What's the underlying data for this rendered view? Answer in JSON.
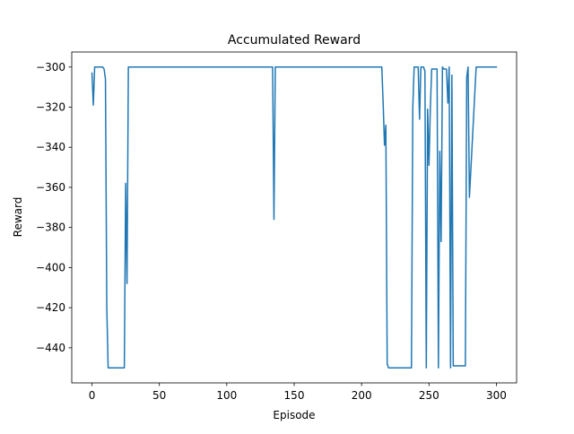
{
  "chart_data": {
    "type": "line",
    "title": "Accumulated Reward",
    "xlabel": "Episode",
    "ylabel": "Reward",
    "xlim": [
      -15,
      315
    ],
    "ylim": [
      -457.5,
      -292.5
    ],
    "xticks": [
      0,
      50,
      100,
      150,
      200,
      250,
      300
    ],
    "xtick_labels": [
      "0",
      "50",
      "100",
      "150",
      "200",
      "250",
      "300"
    ],
    "yticks": [
      -440,
      -420,
      -400,
      -380,
      -360,
      -340,
      -320,
      -300
    ],
    "ytick_labels": [
      "−440",
      "−420",
      "−400",
      "−380",
      "−360",
      "−340",
      "−320",
      "−300"
    ],
    "grid": false,
    "line_color": "#1f77b4",
    "series": [
      {
        "x": [
          0,
          1,
          2,
          3,
          4,
          5,
          6,
          7,
          8,
          9,
          10,
          11,
          12,
          13,
          14,
          15,
          20,
          24,
          25,
          26,
          27,
          28,
          30,
          40,
          60,
          80,
          100,
          120,
          133,
          134,
          135,
          136,
          140,
          160,
          180,
          200,
          214,
          215,
          216,
          217,
          218,
          219,
          220,
          225,
          230,
          237,
          238,
          239,
          240,
          241,
          242,
          243,
          244,
          245,
          246,
          247,
          248,
          249,
          250,
          251,
          252,
          253,
          254,
          255,
          256,
          257,
          258,
          259,
          260,
          261,
          262,
          263,
          264,
          265,
          266,
          267,
          268,
          270,
          275,
          276,
          277,
          278,
          279,
          280,
          285,
          290,
          295,
          297,
          298,
          300
        ],
        "y": [
          -303,
          -319,
          -300,
          -300,
          -300,
          -300,
          -300,
          -300,
          -300,
          -301,
          -306,
          -420,
          -450,
          -450,
          -450,
          -450,
          -450,
          -450,
          -358,
          -408,
          -300,
          -300,
          -300,
          -300,
          -300,
          -300,
          -300,
          -300,
          -300,
          -300,
          -376,
          -300,
          -300,
          -300,
          -300,
          -300,
          -300,
          -300,
          -318,
          -339,
          -329,
          -448,
          -450,
          -450,
          -450,
          -450,
          -320,
          -300,
          -300,
          -300,
          -300,
          -326,
          -300,
          -300,
          -300,
          -302,
          -450,
          -321,
          -349,
          -321,
          -301,
          -301,
          -301,
          -301,
          -301,
          -450,
          -342,
          -387,
          -300,
          -301,
          -301,
          -301,
          -318,
          -300,
          -450,
          -304,
          -449,
          -449,
          -449,
          -449,
          -449,
          -305,
          -300,
          -365,
          -300,
          -300,
          -300,
          -300,
          -300,
          -300
        ]
      }
    ]
  }
}
